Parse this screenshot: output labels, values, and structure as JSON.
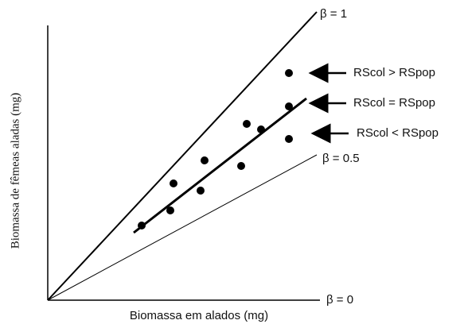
{
  "lines": {
    "beta_1": "β = 1",
    "beta_half": "β = 0.5",
    "beta_0": "β = 0"
  },
  "annotations": [
    "RScol > RSpop",
    "RScol = RSpop",
    "RScol < RSpop"
  ],
  "axes": {
    "x_label": "Biomassa em alados (mg)",
    "y_label": "Biomassa de fêmeas aladas (mg)"
  }
}
